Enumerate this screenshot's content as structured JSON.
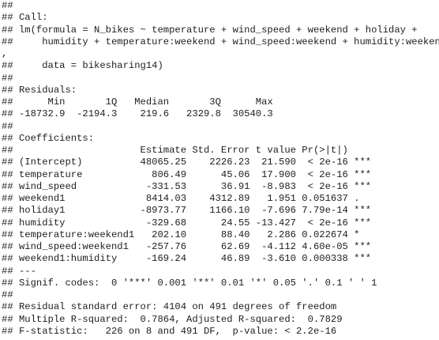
{
  "lines": [
    "## ",
    "## Call:",
    "## lm(formula = N_bikes ~ temperature + wind_speed + weekend + holiday + ",
    "##     humidity + temperature:weekend + wind_speed:weekend + humidity:weekend",
    ",",
    "##     data = bikesharing14)",
    "## ",
    "## Residuals:",
    "##      Min       1Q   Median       3Q      Max ",
    "## -18732.9  -2194.3    219.6   2329.8  30540.3 ",
    "## ",
    "## Coefficients:",
    "##                      Estimate Std. Error t value Pr(>|t|)    ",
    "## (Intercept)          48065.25    2226.23  21.590  < 2e-16 ***",
    "## temperature            806.49      45.06  17.900  < 2e-16 ***",
    "## wind_speed            -331.53      36.91  -8.983  < 2e-16 ***",
    "## weekend1              8414.03    4312.89   1.951 0.051637 .  ",
    "## holiday1             -8973.77    1166.10  -7.696 7.79e-14 ***",
    "## humidity              -329.68      24.55 -13.427  < 2e-16 ***",
    "## temperature:weekend1   202.10      88.40   2.286 0.022674 *  ",
    "## wind_speed:weekend1   -257.76      62.69  -4.112 4.60e-05 ***",
    "## weekend1:humidity     -169.24      46.89  -3.610 0.000338 ***",
    "## ---",
    "## Signif. codes:  0 '***' 0.001 '**' 0.01 '*' 0.05 '.' 0.1 ' ' 1",
    "## ",
    "## Residual standard error: 4104 on 491 degrees of freedom",
    "## Multiple R-squared:  0.7864, Adjusted R-squared:  0.7829 ",
    "## F-statistic:   226 on 8 and 491 DF,  p-value: < 2.2e-16"
  ]
}
